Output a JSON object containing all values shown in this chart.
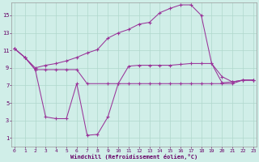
{
  "background_color": "#d0eee8",
  "grid_color": "#b0d8cc",
  "line_color": "#993399",
  "xlabel": "Windchill (Refroidissement éolien,°C)",
  "xlim": [
    -0.3,
    23.3
  ],
  "ylim": [
    0,
    16.5
  ],
  "xticks": [
    0,
    1,
    2,
    3,
    4,
    5,
    6,
    7,
    8,
    9,
    10,
    11,
    12,
    13,
    14,
    15,
    16,
    17,
    18,
    19,
    20,
    21,
    22,
    23
  ],
  "yticks": [
    1,
    3,
    5,
    7,
    9,
    11,
    13,
    15
  ],
  "line1_x": [
    0,
    1,
    2,
    3,
    4,
    5,
    6,
    7,
    9,
    10,
    11,
    12,
    13,
    14,
    15,
    16,
    17,
    18,
    19,
    20,
    21,
    22,
    23
  ],
  "line1_y": [
    11.2,
    10.2,
    8.8,
    8.8,
    8.8,
    8.8,
    8.8,
    7.2,
    7.2,
    7.2,
    7.2,
    7.2,
    7.2,
    7.2,
    7.2,
    7.2,
    7.2,
    7.2,
    7.2,
    7.2,
    7.2,
    7.6,
    7.6
  ],
  "line2_x": [
    0,
    1,
    2,
    3,
    4,
    5,
    6,
    7,
    8,
    9,
    10,
    11,
    12,
    13,
    14,
    15,
    16,
    17,
    18,
    19,
    20,
    21,
    22,
    23
  ],
  "line2_y": [
    11.2,
    10.2,
    9.0,
    9.3,
    9.5,
    9.8,
    10.2,
    10.7,
    11.1,
    12.4,
    13.0,
    13.4,
    14.0,
    14.2,
    15.3,
    15.8,
    16.2,
    16.2,
    15.0,
    9.5,
    8.0,
    7.4,
    7.6,
    7.6
  ],
  "line3_x": [
    0,
    1,
    2,
    3,
    4,
    5,
    6,
    7,
    8,
    9,
    10,
    11,
    12,
    13,
    14,
    15,
    16,
    17,
    18,
    19,
    20,
    21,
    22,
    23
  ],
  "line3_y": [
    11.2,
    10.2,
    8.8,
    3.4,
    3.2,
    3.2,
    7.2,
    1.3,
    1.4,
    3.4,
    7.2,
    9.2,
    9.3,
    9.3,
    9.3,
    9.3,
    9.4,
    9.5,
    9.5,
    9.5,
    7.3,
    7.4,
    7.6,
    7.6
  ]
}
